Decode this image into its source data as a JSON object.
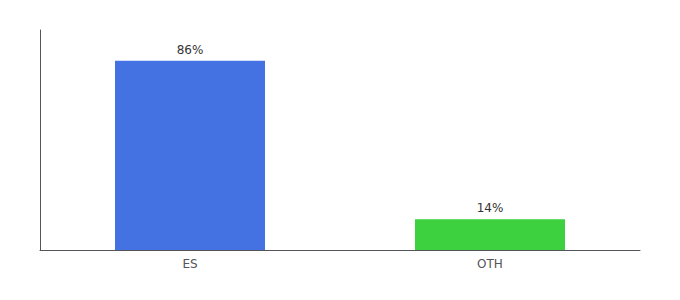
{
  "chart_data": {
    "type": "bar",
    "categories": [
      "ES",
      "OTH"
    ],
    "values": [
      86,
      14
    ],
    "value_labels": [
      "86%",
      "14%"
    ],
    "colors": [
      "#4472E3",
      "#3DD13F"
    ],
    "ylim": [
      0,
      100
    ],
    "data_labels": true,
    "tick_labels": "x",
    "grid": false
  }
}
